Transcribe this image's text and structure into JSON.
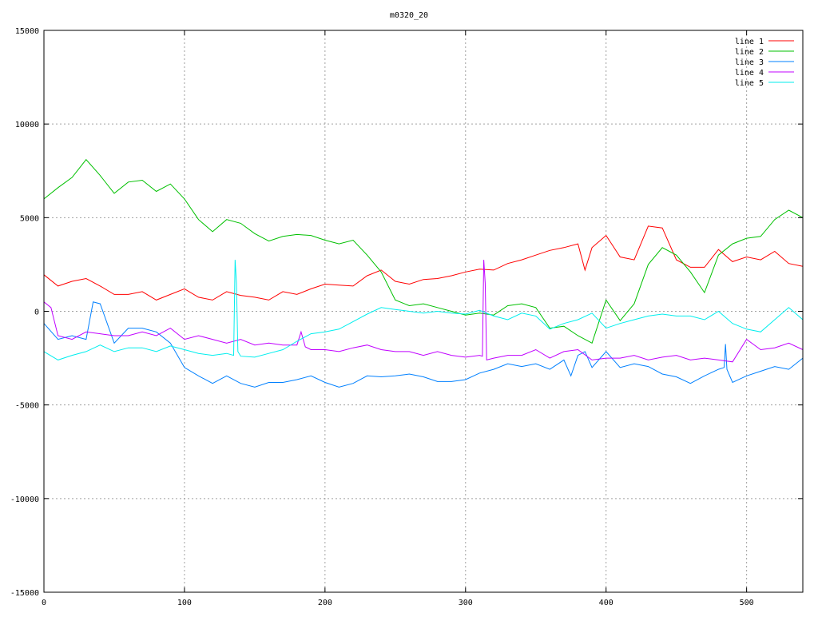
{
  "chart_data": {
    "type": "line",
    "title": "m0320_20",
    "xlabel": "",
    "ylabel": "",
    "xlim": [
      0,
      540
    ],
    "ylim": [
      -15000,
      15000
    ],
    "xticks": [
      0,
      100,
      200,
      300,
      400,
      500
    ],
    "yticks": [
      -15000,
      -10000,
      -5000,
      0,
      5000,
      10000,
      15000
    ],
    "grid": true,
    "legend_position": "top-right",
    "series": [
      {
        "name": "line 1",
        "color": "#ff0000",
        "x": [
          0,
          10,
          20,
          30,
          40,
          50,
          60,
          70,
          80,
          90,
          100,
          110,
          120,
          130,
          140,
          150,
          160,
          170,
          180,
          190,
          200,
          210,
          220,
          230,
          240,
          250,
          260,
          270,
          280,
          290,
          300,
          310,
          320,
          330,
          340,
          350,
          360,
          370,
          380,
          385,
          390,
          400,
          410,
          420,
          430,
          440,
          450,
          460,
          470,
          480,
          490,
          500,
          510,
          520,
          530,
          540
        ],
        "y": [
          1950,
          1350,
          1600,
          1750,
          1350,
          900,
          900,
          1050,
          600,
          900,
          1200,
          750,
          600,
          1050,
          850,
          750,
          600,
          1050,
          900,
          1200,
          1450,
          1400,
          1350,
          1900,
          2200,
          1600,
          1450,
          1700,
          1750,
          1900,
          2100,
          2250,
          2200,
          2550,
          2750,
          3000,
          3250,
          3400,
          3600,
          2200,
          3400,
          4050,
          2900,
          2750,
          4550,
          4450,
          2750,
          2350,
          2350,
          3300,
          2650,
          2900,
          2750,
          3200,
          2550,
          2400
        ]
      },
      {
        "name": "line 2",
        "color": "#00c000",
        "x": [
          0,
          10,
          20,
          30,
          40,
          50,
          60,
          70,
          80,
          90,
          100,
          110,
          120,
          130,
          140,
          150,
          160,
          170,
          180,
          190,
          200,
          210,
          220,
          230,
          240,
          250,
          260,
          270,
          280,
          290,
          300,
          310,
          320,
          330,
          340,
          350,
          360,
          370,
          380,
          390,
          400,
          410,
          420,
          430,
          440,
          450,
          460,
          470,
          480,
          490,
          500,
          510,
          520,
          530,
          540
        ],
        "y": [
          6000,
          6600,
          7150,
          8100,
          7250,
          6300,
          6900,
          7000,
          6400,
          6800,
          6000,
          4900,
          4250,
          4900,
          4700,
          4150,
          3750,
          4000,
          4100,
          4050,
          3800,
          3600,
          3800,
          3000,
          2100,
          600,
          300,
          400,
          200,
          0,
          -200,
          -100,
          -200,
          300,
          400,
          200,
          -900,
          -800,
          -1300,
          -1700,
          600,
          -500,
          400,
          2500,
          3400,
          3000,
          2100,
          1000,
          3000,
          3600,
          3900,
          4000,
          4900,
          5400,
          5000
        ]
      },
      {
        "name": "line 3",
        "color": "#0080ff",
        "x": [
          0,
          10,
          20,
          30,
          35,
          40,
          50,
          60,
          70,
          80,
          90,
          100,
          110,
          120,
          130,
          140,
          150,
          160,
          170,
          180,
          190,
          200,
          210,
          220,
          230,
          240,
          250,
          260,
          270,
          280,
          290,
          300,
          310,
          320,
          330,
          340,
          350,
          360,
          370,
          375,
          380,
          385,
          390,
          400,
          410,
          420,
          430,
          440,
          450,
          460,
          470,
          480,
          484,
          485,
          486,
          490,
          500,
          510,
          520,
          530,
          540
        ],
        "y": [
          -650,
          -1500,
          -1300,
          -1500,
          500,
          400,
          -1700,
          -900,
          -900,
          -1100,
          -1700,
          -3000,
          -3450,
          -3850,
          -3450,
          -3850,
          -4050,
          -3800,
          -3800,
          -3650,
          -3450,
          -3800,
          -4050,
          -3850,
          -3450,
          -3500,
          -3450,
          -3350,
          -3500,
          -3750,
          -3750,
          -3650,
          -3300,
          -3100,
          -2800,
          -2950,
          -2800,
          -3100,
          -2600,
          -3450,
          -2350,
          -2150,
          -3000,
          -2150,
          -3000,
          -2800,
          -2950,
          -3350,
          -3500,
          -3850,
          -3450,
          -3100,
          -3000,
          -1750,
          -3100,
          -3800,
          -3450,
          -3200,
          -2950,
          -3100,
          -2500
        ]
      },
      {
        "name": "line 4",
        "color": "#c000ff",
        "x": [
          0,
          5,
          10,
          20,
          30,
          40,
          50,
          60,
          70,
          80,
          90,
          100,
          110,
          120,
          130,
          140,
          150,
          160,
          170,
          180,
          183,
          186,
          190,
          200,
          210,
          220,
          230,
          240,
          250,
          260,
          270,
          280,
          290,
          300,
          310,
          312,
          313,
          314,
          315,
          320,
          330,
          340,
          350,
          360,
          370,
          380,
          390,
          400,
          410,
          420,
          430,
          440,
          450,
          460,
          470,
          480,
          490,
          500,
          510,
          520,
          530,
          540
        ],
        "y": [
          500,
          200,
          -1300,
          -1500,
          -1100,
          -1200,
          -1300,
          -1300,
          -1100,
          -1300,
          -900,
          -1500,
          -1300,
          -1500,
          -1700,
          -1500,
          -1800,
          -1700,
          -1800,
          -1800,
          -1100,
          -1900,
          -2050,
          -2050,
          -2150,
          -1950,
          -1800,
          -2050,
          -2150,
          -2150,
          -2350,
          -2150,
          -2350,
          -2450,
          -2350,
          -2400,
          2750,
          1500,
          -2600,
          -2500,
          -2350,
          -2350,
          -2050,
          -2500,
          -2150,
          -2050,
          -2600,
          -2500,
          -2500,
          -2350,
          -2600,
          -2450,
          -2350,
          -2600,
          -2500,
          -2600,
          -2700,
          -1500,
          -2050,
          -1950,
          -1700,
          -2050
        ]
      },
      {
        "name": "line 5",
        "color": "#00eeee",
        "x": [
          0,
          10,
          20,
          30,
          40,
          50,
          60,
          70,
          80,
          90,
          100,
          110,
          120,
          130,
          135,
          136,
          137,
          138,
          140,
          150,
          160,
          170,
          180,
          190,
          200,
          210,
          220,
          230,
          240,
          250,
          260,
          270,
          280,
          290,
          300,
          310,
          320,
          330,
          340,
          350,
          360,
          370,
          380,
          390,
          400,
          410,
          420,
          430,
          440,
          450,
          460,
          470,
          480,
          490,
          500,
          510,
          520,
          530,
          540
        ],
        "y": [
          -2150,
          -2600,
          -2350,
          -2150,
          -1800,
          -2150,
          -1950,
          -1950,
          -2150,
          -1850,
          -2050,
          -2250,
          -2350,
          -2250,
          -2350,
          2750,
          1500,
          -2150,
          -2400,
          -2450,
          -2250,
          -2050,
          -1600,
          -1200,
          -1100,
          -950,
          -550,
          -150,
          200,
          100,
          0,
          -100,
          0,
          -100,
          -150,
          50,
          -250,
          -450,
          -100,
          -250,
          -950,
          -650,
          -450,
          -100,
          -900,
          -650,
          -450,
          -250,
          -150,
          -250,
          -250,
          -450,
          0,
          -650,
          -950,
          -1100,
          -450,
          200,
          -450
        ]
      }
    ]
  }
}
